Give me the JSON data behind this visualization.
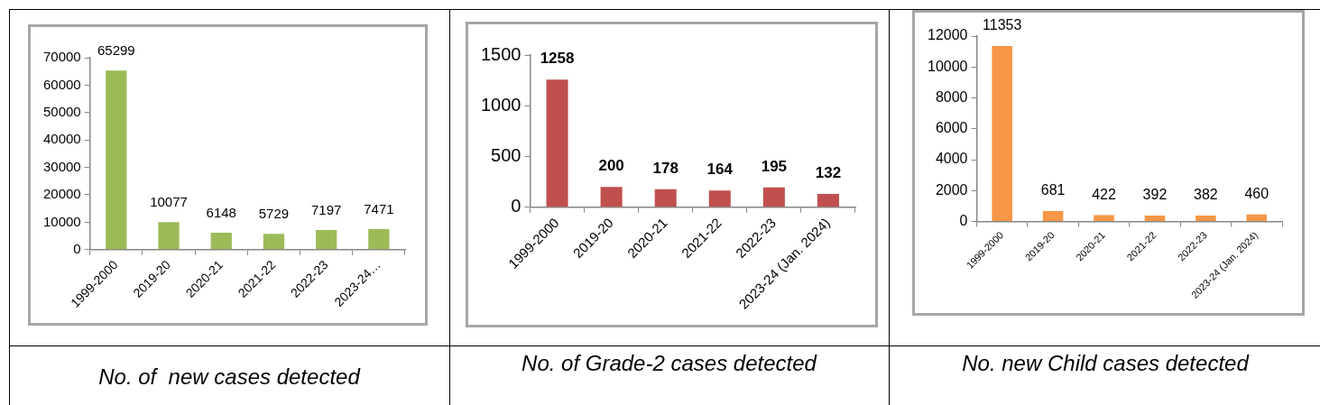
{
  "chart_data": [
    {
      "type": "bar",
      "title": "No. of  new cases detected",
      "categories": [
        "1999-2000",
        "2019-20",
        "2020-21",
        "2021-22",
        "2022-23",
        "2023-24…"
      ],
      "values": [
        65299,
        10077,
        6148,
        5729,
        7197,
        7471
      ],
      "color": "#9bbb59",
      "ylim": [
        0,
        70000
      ],
      "yticks": [
        0,
        10000,
        20000,
        30000,
        40000,
        50000,
        60000,
        70000
      ],
      "grid": false,
      "legend": false,
      "data_labels": true
    },
    {
      "type": "bar",
      "title": "No. of Grade-2 cases detected",
      "categories": [
        "1999-2000",
        "2019-20",
        "2020-21",
        "2021-22",
        "2022-23",
        "2023-24 (Jan. 2024)"
      ],
      "values": [
        1258,
        200,
        178,
        164,
        195,
        132
      ],
      "color": "#c0504d",
      "ylim": [
        0,
        1500
      ],
      "yticks": [
        0,
        500,
        1000,
        1500
      ],
      "grid": false,
      "legend": false,
      "data_labels": true
    },
    {
      "type": "bar",
      "title": "No. new Child cases detected",
      "categories": [
        "1999-2000",
        "2019-20",
        "2020-21",
        "2021-22",
        "2022-23",
        "2023-24 (Jan. 2024)"
      ],
      "values": [
        11353,
        681,
        422,
        392,
        382,
        460
      ],
      "color": "#f79646",
      "ylim": [
        0,
        12000
      ],
      "yticks": [
        0,
        2000,
        4000,
        6000,
        8000,
        10000,
        12000
      ],
      "grid": false,
      "legend": false,
      "data_labels": true
    }
  ]
}
